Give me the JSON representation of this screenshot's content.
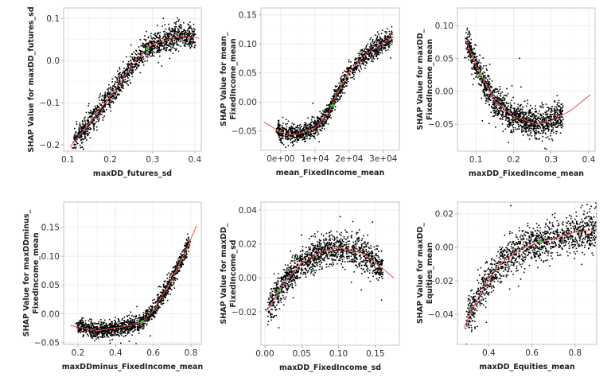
{
  "chart_data": [
    {
      "type": "scatter",
      "xlabel": "maxDD_futures_sd",
      "ylabel": [
        "SHAP Value for maxDD_futures_sd"
      ],
      "xlim": [
        0.09,
        0.415
      ],
      "ylim": [
        -0.215,
        0.125
      ],
      "xticks": [
        0.1,
        0.2,
        0.3,
        0.4
      ],
      "xtick_labels": [
        "0.1",
        "0.2",
        "0.3",
        "0.4"
      ],
      "yticks": [
        -0.2,
        -0.1,
        0.0,
        0.1
      ],
      "ytick_labels": [
        "−0.2",
        "−0.1",
        "0.0",
        "0.1"
      ],
      "fit": [
        [
          0.105,
          -0.205
        ],
        [
          0.15,
          -0.15
        ],
        [
          0.2,
          -0.085
        ],
        [
          0.25,
          -0.015
        ],
        [
          0.28,
          0.022
        ],
        [
          0.3,
          0.038
        ],
        [
          0.35,
          0.055
        ],
        [
          0.38,
          0.058
        ],
        [
          0.41,
          0.053
        ]
      ],
      "points_xrange": [
        0.115,
        0.4
      ],
      "spread": 0.014,
      "highlight": [
        0.288,
        0.028
      ]
    },
    {
      "type": "scatter",
      "xlabel": "mean_FixedIncome_mean",
      "ylabel": [
        "SHAP Value for mean_",
        "FixedIncome_mean"
      ],
      "xlim": [
        -5800,
        34700
      ],
      "ylim": [
        -0.083,
        0.162
      ],
      "xticks": [
        0,
        10000,
        20000,
        30000
      ],
      "xtick_labels": [
        "0e+00",
        "1e+04",
        "2e+04",
        "3e+04"
      ],
      "yticks": [
        -0.05,
        0.0,
        0.05,
        0.1,
        0.15
      ],
      "ytick_labels": [
        "−0.05",
        "0.00",
        "0.05",
        "0.10",
        "0.15"
      ],
      "fit": [
        [
          -5000,
          -0.034
        ],
        [
          0,
          -0.052
        ],
        [
          4000,
          -0.057
        ],
        [
          10000,
          -0.045
        ],
        [
          14000,
          -0.02
        ],
        [
          16000,
          0.01
        ],
        [
          20000,
          0.052
        ],
        [
          25000,
          0.083
        ],
        [
          33000,
          0.113
        ]
      ],
      "points_xrange": [
        -1000,
        32500
      ],
      "spread": 0.008,
      "highlight": [
        15300,
        -0.006
      ]
    },
    {
      "type": "scatter",
      "xlabel": "maxDD_FixedIncome_mean",
      "ylabel": [
        "SHAP Value for maxDD_",
        "FixedIncome_mean"
      ],
      "xlim": [
        0.051,
        0.417
      ],
      "ylim": [
        -0.091,
        0.127
      ],
      "xticks": [
        0.1,
        0.2,
        0.3,
        0.4
      ],
      "xtick_labels": [
        "0.1",
        "0.2",
        "0.3",
        "0.4"
      ],
      "yticks": [
        -0.05,
        0.0,
        0.05,
        0.1
      ],
      "ytick_labels": [
        "−0.05",
        "0.00",
        "0.05",
        "0.10"
      ],
      "fit": [
        [
          0.07,
          0.082
        ],
        [
          0.1,
          0.04
        ],
        [
          0.15,
          -0.015
        ],
        [
          0.2,
          -0.038
        ],
        [
          0.26,
          -0.05
        ],
        [
          0.3,
          -0.045
        ],
        [
          0.35,
          -0.03
        ],
        [
          0.405,
          -0.005
        ]
      ],
      "points_xrange": [
        0.075,
        0.33
      ],
      "spread": 0.011,
      "highlight": [
        0.111,
        0.025
      ]
    },
    {
      "type": "scatter",
      "xlabel": "maxDDminus_FixedIncome_mean",
      "ylabel": [
        "SHAP Value for maxDDminus_",
        "FixedIncome_mean"
      ],
      "xlim": [
        0.124,
        0.855
      ],
      "ylim": [
        -0.053,
        0.194
      ],
      "xticks": [
        0.2,
        0.4,
        0.6,
        0.8
      ],
      "xtick_labels": [
        "0.2",
        "0.4",
        "0.6",
        "0.8"
      ],
      "yticks": [
        -0.05,
        0.0,
        0.05,
        0.1,
        0.15
      ],
      "ytick_labels": [
        "−0.05",
        "0.00",
        "0.05",
        "0.10",
        "0.15"
      ],
      "fit": [
        [
          0.16,
          -0.02
        ],
        [
          0.3,
          -0.029
        ],
        [
          0.45,
          -0.022
        ],
        [
          0.54,
          -0.014
        ],
        [
          0.6,
          0.005
        ],
        [
          0.7,
          0.06
        ],
        [
          0.78,
          0.115
        ],
        [
          0.83,
          0.153
        ]
      ],
      "points_xrange": [
        0.2,
        0.79
      ],
      "spread": 0.007,
      "highlight": [
        0.541,
        -0.014
      ]
    },
    {
      "type": "scatter",
      "xlabel": "maxDD_FixedIncome_sd",
      "ylabel": [
        "SHAP Value for maxDD_",
        "FixedIncome_sd"
      ],
      "xlim": [
        -0.0054,
        0.1826
      ],
      "ylim": [
        -0.0397,
        0.0447
      ],
      "xticks": [
        0.0,
        0.05,
        0.1,
        0.15
      ],
      "xtick_labels": [
        "0.00",
        "0.05",
        "0.10",
        "0.15"
      ],
      "yticks": [
        -0.02,
        0.0,
        0.02,
        0.04
      ],
      "ytick_labels": [
        "−0.02",
        "0.00",
        "0.02",
        "0.04"
      ],
      "fit": [
        [
          0.002,
          -0.02
        ],
        [
          0.02,
          -0.007
        ],
        [
          0.05,
          0.009
        ],
        [
          0.08,
          0.016
        ],
        [
          0.1,
          0.0178
        ],
        [
          0.13,
          0.015
        ],
        [
          0.15,
          0.009
        ],
        [
          0.175,
          0.0
        ]
      ],
      "points_xrange": [
        0.005,
        0.16
      ],
      "spread": 0.0045,
      "highlight": [
        0.019,
        -0.0075
      ]
    },
    {
      "type": "scatter",
      "xlabel": "maxDD_Equities_mean",
      "ylabel": [
        "SHAP Value for maxDD_",
        "Equities_mean"
      ],
      "xlim": [
        0.255,
        0.9
      ],
      "ylim": [
        -0.058,
        0.027
      ],
      "xticks": [
        0.4,
        0.6,
        0.8
      ],
      "xtick_labels": [
        "0.4",
        "0.6",
        "0.8"
      ],
      "yticks": [
        -0.04,
        -0.02,
        0.0,
        0.02
      ],
      "ytick_labels": [
        "−0.04",
        "−0.02",
        "0.00",
        "0.02"
      ],
      "fit": [
        [
          0.285,
          -0.048
        ],
        [
          0.35,
          -0.03
        ],
        [
          0.45,
          -0.01
        ],
        [
          0.55,
          -0.001
        ],
        [
          0.64,
          0.003
        ],
        [
          0.8,
          0.009
        ],
        [
          0.96,
          0.012
        ]
      ],
      "points_xrange": [
        0.3,
        0.95
      ],
      "spread": 0.0055,
      "highlight": [
        0.641,
        0.003
      ]
    }
  ],
  "colors": {
    "points": "#000000",
    "fit": "#f04a4a",
    "highlight": "#33cc33",
    "grid": "#ececec",
    "border": "#c4c4c4"
  }
}
